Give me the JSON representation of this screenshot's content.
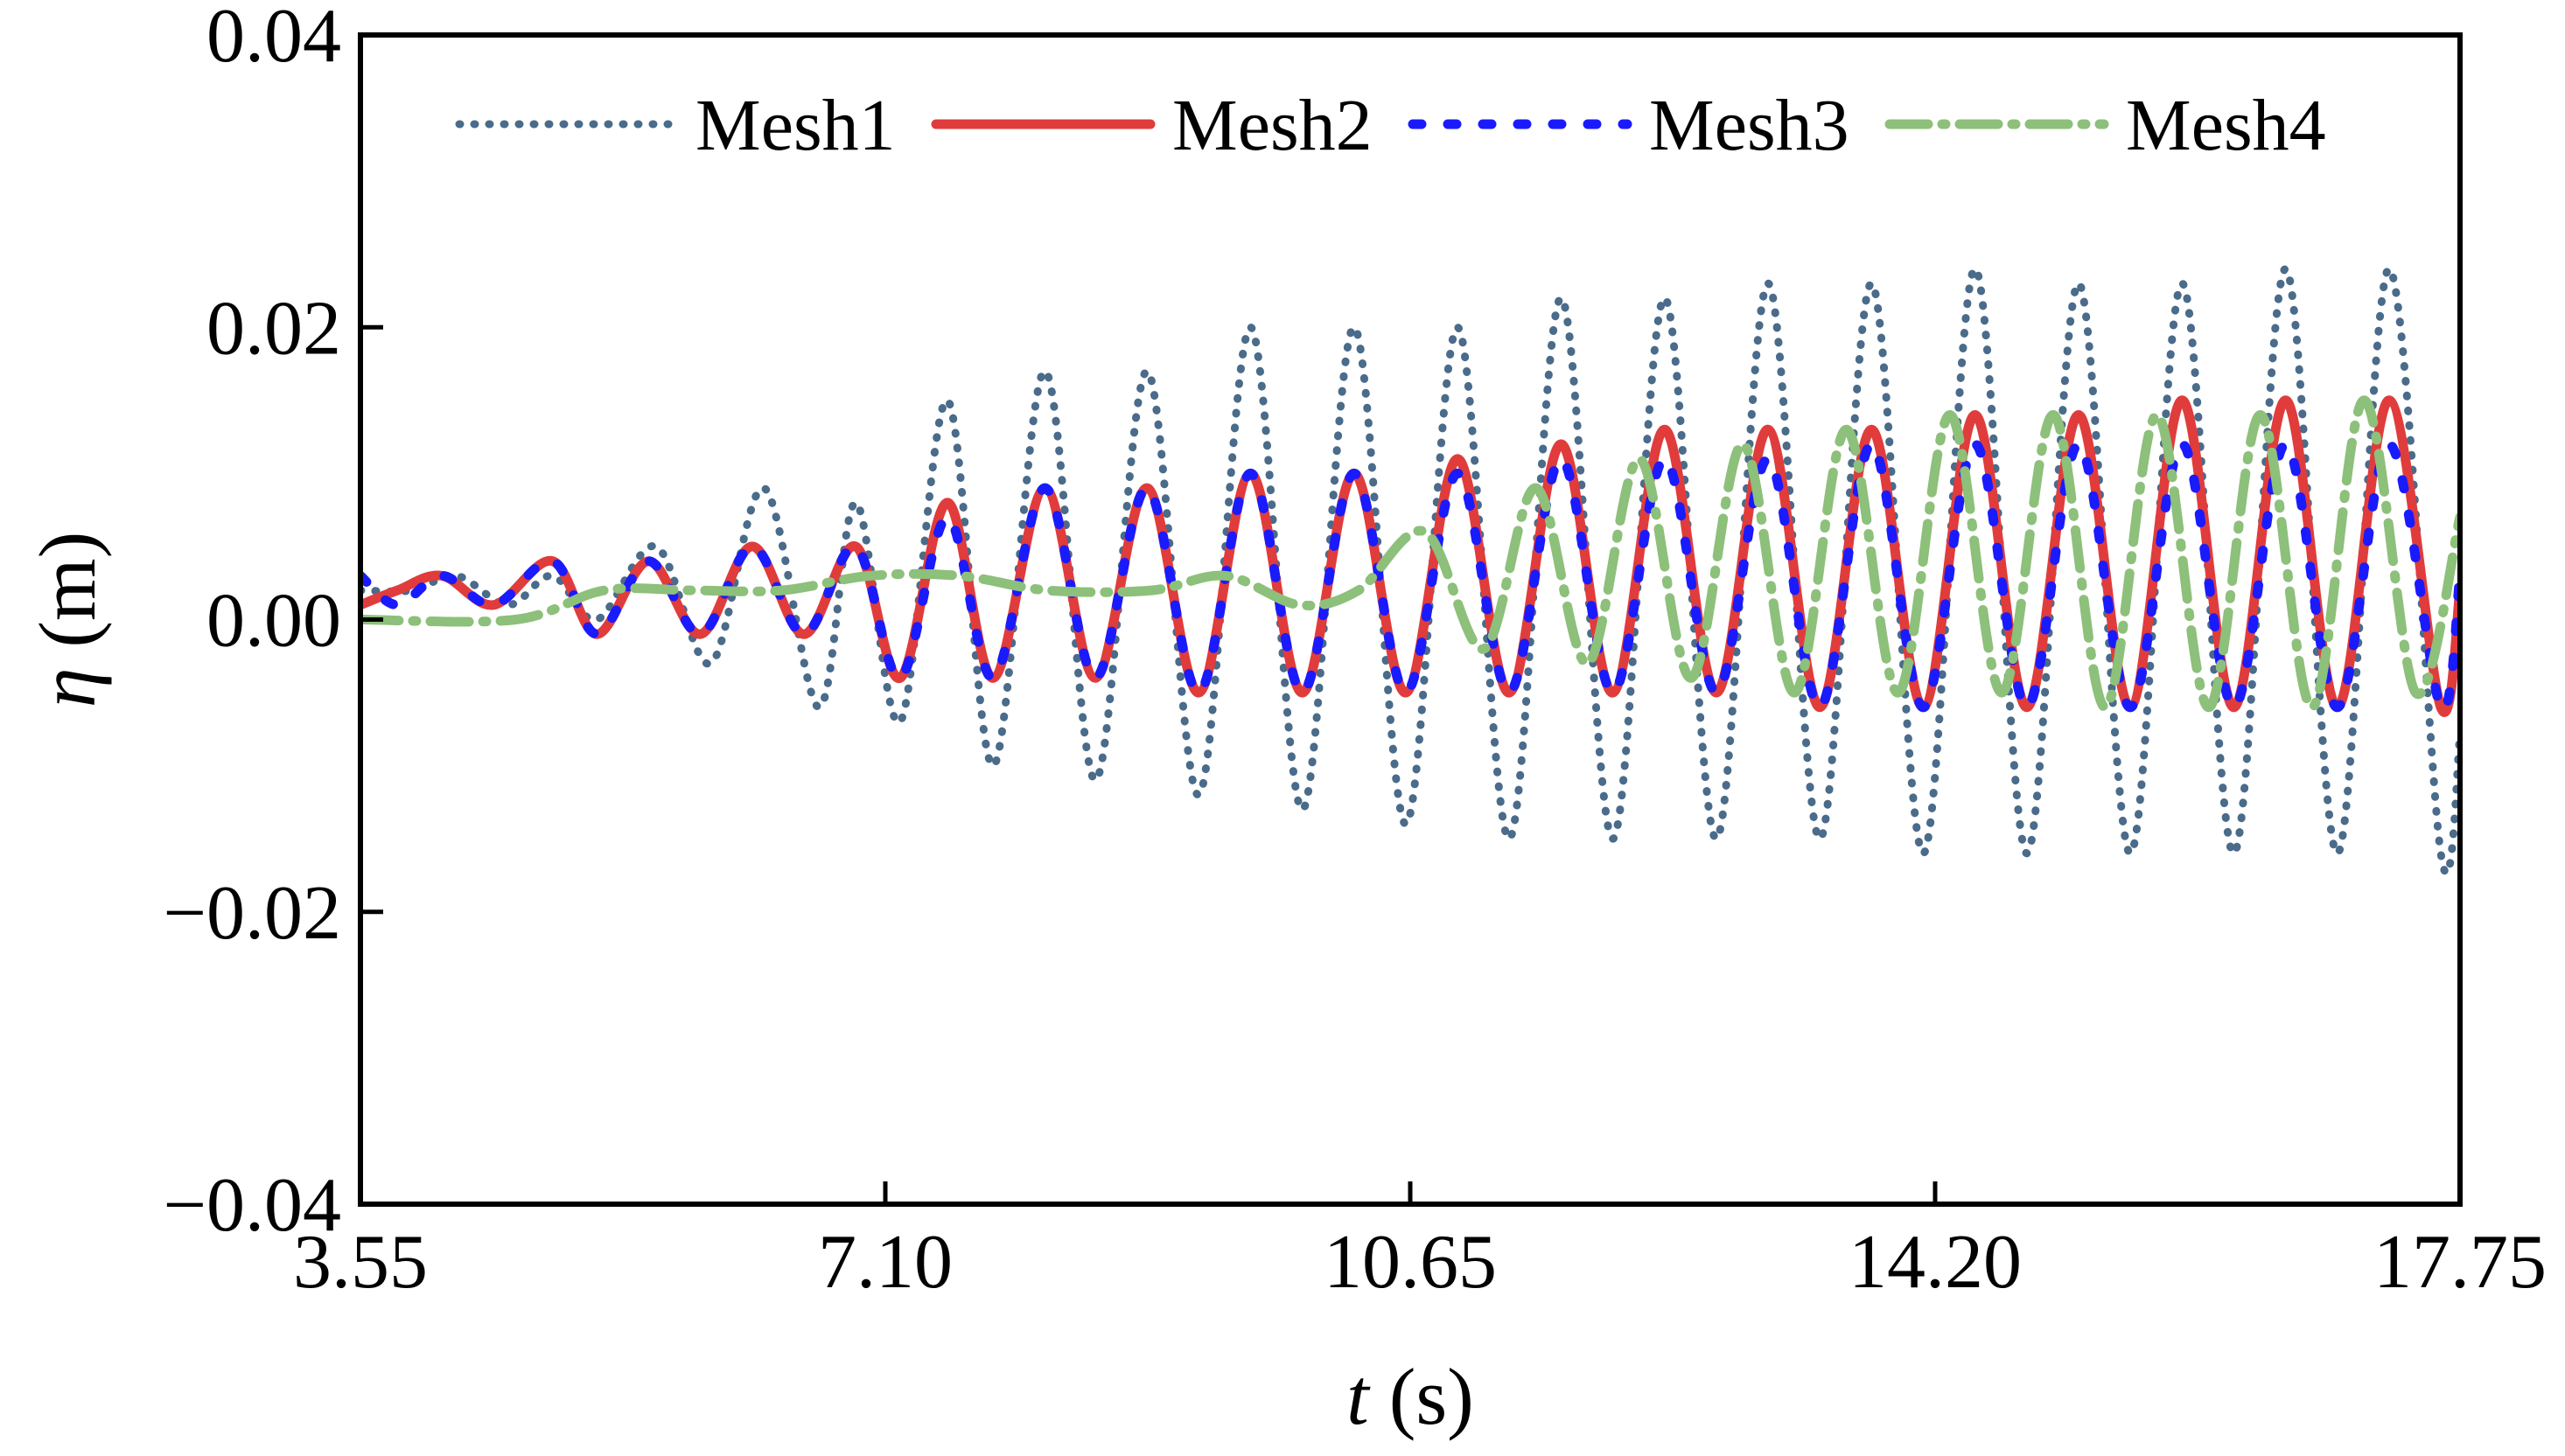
{
  "chart_data": {
    "type": "line",
    "title": "",
    "xlabel": "t (s)",
    "xlabel_var": "t",
    "xlabel_unit": " (s)",
    "ylabel": "η (m)",
    "ylabel_var": "η",
    "ylabel_unit": " (m)",
    "xlim": [
      3.55,
      17.75
    ],
    "ylim": [
      -0.04,
      0.04
    ],
    "xticks": [
      3.55,
      7.1,
      10.65,
      14.2,
      17.75
    ],
    "xtick_labels": [
      "3.55",
      "7.10",
      "10.65",
      "14.20",
      "17.75"
    ],
    "yticks": [
      -0.04,
      -0.02,
      0.0,
      0.02,
      0.04
    ],
    "ytick_labels": [
      "−0.04",
      "−0.02",
      "0.00",
      "0.02",
      "0.04"
    ],
    "legend_position": "top",
    "grid": false,
    "series": [
      {
        "name": "Mesh1",
        "color": "#4a6b8a",
        "style": "dotted",
        "x": [
          3.55,
          3.9,
          4.2,
          4.55,
          4.85,
          5.15,
          5.55,
          5.92,
          6.28,
          6.65,
          6.9,
          7.2,
          7.52,
          7.83,
          8.18,
          8.52,
          8.87,
          9.22,
          9.57,
          9.92,
          10.27,
          10.62,
          10.97,
          11.32,
          11.67,
          12.02,
          12.37,
          12.72,
          13.07,
          13.42,
          13.77,
          14.12,
          14.47,
          14.82,
          15.17,
          15.52,
          15.87,
          16.22,
          16.57,
          16.92,
          17.27,
          17.62,
          17.75
        ],
        "y": [
          0.002,
          0.002,
          0.003,
          0.001,
          0.003,
          0.0,
          0.005,
          -0.003,
          0.009,
          -0.006,
          0.008,
          -0.007,
          0.015,
          -0.01,
          0.017,
          -0.011,
          0.017,
          -0.012,
          0.02,
          -0.013,
          0.02,
          -0.014,
          0.02,
          -0.015,
          0.022,
          -0.015,
          0.022,
          -0.015,
          0.023,
          -0.015,
          0.023,
          -0.016,
          0.024,
          -0.016,
          0.023,
          -0.016,
          0.023,
          -0.016,
          0.024,
          -0.016,
          0.024,
          -0.016,
          -0.008
        ]
      },
      {
        "name": "Mesh2",
        "color": "#e03c3c",
        "style": "solid",
        "x": [
          3.55,
          3.8,
          4.1,
          4.45,
          4.85,
          5.15,
          5.5,
          5.85,
          6.2,
          6.55,
          6.9,
          7.2,
          7.52,
          7.83,
          8.18,
          8.52,
          8.87,
          9.22,
          9.57,
          9.92,
          10.27,
          10.62,
          10.97,
          11.32,
          11.67,
          12.02,
          12.37,
          12.72,
          13.07,
          13.42,
          13.77,
          14.12,
          14.47,
          14.82,
          15.17,
          15.52,
          15.87,
          16.22,
          16.57,
          16.92,
          17.27,
          17.62,
          17.75
        ],
        "y": [
          0.001,
          0.002,
          0.003,
          0.001,
          0.004,
          -0.001,
          0.004,
          -0.001,
          0.005,
          -0.001,
          0.005,
          -0.004,
          0.008,
          -0.004,
          0.009,
          -0.004,
          0.009,
          -0.005,
          0.01,
          -0.005,
          0.01,
          -0.005,
          0.011,
          -0.005,
          0.012,
          -0.005,
          0.013,
          -0.005,
          0.013,
          -0.006,
          0.013,
          -0.006,
          0.014,
          -0.006,
          0.014,
          -0.006,
          0.015,
          -0.006,
          0.015,
          -0.006,
          0.015,
          -0.006,
          0.002
        ]
      },
      {
        "name": "Mesh3",
        "color": "#1a1aff",
        "style": "dashed",
        "x": [
          3.55,
          3.8,
          4.1,
          4.45,
          4.85,
          5.15,
          5.5,
          5.85,
          6.2,
          6.55,
          6.9,
          7.2,
          7.52,
          7.83,
          8.18,
          8.52,
          8.87,
          9.22,
          9.57,
          9.92,
          10.27,
          10.62,
          10.97,
          11.32,
          11.67,
          12.02,
          12.37,
          12.72,
          13.07,
          13.42,
          13.77,
          14.12,
          14.47,
          14.82,
          15.17,
          15.52,
          15.87,
          16.22,
          16.57,
          16.92,
          17.27,
          17.62,
          17.75
        ],
        "y": [
          0.003,
          0.001,
          0.003,
          0.001,
          0.004,
          -0.001,
          0.004,
          -0.001,
          0.005,
          -0.001,
          0.005,
          -0.004,
          0.007,
          -0.004,
          0.009,
          -0.004,
          0.009,
          -0.005,
          0.01,
          -0.005,
          0.01,
          -0.005,
          0.01,
          -0.005,
          0.011,
          -0.005,
          0.011,
          -0.005,
          0.011,
          -0.006,
          0.012,
          -0.006,
          0.012,
          -0.006,
          0.012,
          -0.006,
          0.012,
          -0.006,
          0.012,
          -0.006,
          0.012,
          -0.006,
          0.003
        ]
      },
      {
        "name": "Mesh4",
        "color": "#8dc07a",
        "style": "dashdot",
        "x": [
          3.55,
          4.6,
          5.2,
          5.8,
          6.4,
          7.0,
          7.6,
          8.2,
          8.9,
          9.4,
          9.9,
          10.3,
          10.75,
          11.15,
          11.5,
          11.85,
          12.2,
          12.55,
          12.9,
          13.25,
          13.6,
          13.95,
          14.3,
          14.65,
          15.0,
          15.35,
          15.7,
          16.05,
          16.4,
          16.75,
          17.1,
          17.45,
          17.75
        ],
        "y": [
          0.0,
          0.0,
          0.002,
          0.002,
          0.002,
          0.003,
          0.003,
          0.002,
          0.002,
          0.003,
          0.001,
          0.002,
          0.006,
          -0.002,
          0.009,
          -0.003,
          0.011,
          -0.004,
          0.012,
          -0.005,
          0.013,
          -0.005,
          0.014,
          -0.005,
          0.014,
          -0.006,
          0.014,
          -0.006,
          0.014,
          -0.006,
          0.015,
          -0.005,
          0.007
        ]
      }
    ]
  }
}
